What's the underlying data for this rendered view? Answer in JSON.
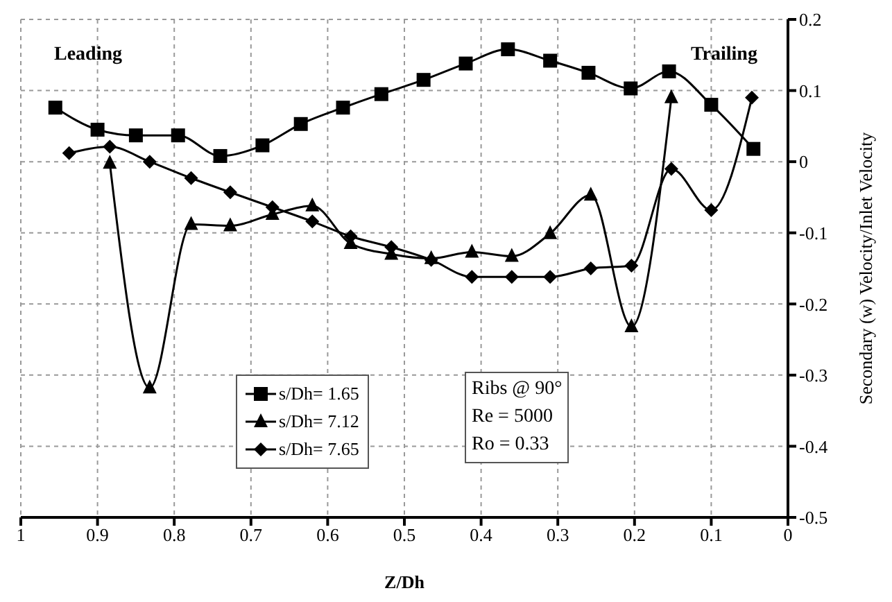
{
  "chart_data": {
    "type": "line",
    "xlabel": "Z/Dh",
    "ylabel": "Secondary (w) Velocity/Inlet Velocity",
    "xlim": [
      1,
      0
    ],
    "xticks": [
      1,
      0.9,
      0.8,
      0.7,
      0.6,
      0.5,
      0.4,
      0.3,
      0.2,
      0.1,
      0
    ],
    "ylim": [
      -0.5,
      0.2
    ],
    "yticks": [
      -0.5,
      -0.4,
      -0.3,
      -0.2,
      -0.1,
      0,
      0.1,
      0.2
    ],
    "grid": true,
    "legend": "bottom left",
    "series": [
      {
        "name": "s/Dh= 1.65",
        "color": "#000000",
        "marker": "square",
        "x": [
          0.955,
          0.9,
          0.85,
          0.795,
          0.74,
          0.685,
          0.635,
          0.58,
          0.53,
          0.475,
          0.42,
          0.365,
          0.31,
          0.26,
          0.205,
          0.155,
          0.1,
          0.045
        ],
        "values": [
          0.076,
          0.045,
          0.037,
          0.037,
          0.008,
          0.023,
          0.053,
          0.076,
          0.095,
          0.115,
          0.138,
          0.158,
          0.142,
          0.125,
          0.103,
          0.127,
          0.08,
          0.018
        ]
      },
      {
        "name": "s/Dh= 7.12",
        "color": "#000000",
        "marker": "triangle",
        "x": [
          0.884,
          0.832,
          0.778,
          0.727,
          0.672,
          0.62,
          0.57,
          0.517,
          0.465,
          0.412,
          0.36,
          0.31,
          0.257,
          0.204,
          0.152
        ],
        "values": [
          -0.002,
          -0.318,
          -0.088,
          -0.09,
          -0.074,
          -0.062,
          -0.115,
          -0.13,
          -0.136,
          -0.127,
          -0.133,
          -0.101,
          -0.047,
          -0.232,
          0.09
        ]
      },
      {
        "name": "s/Dh= 7.65",
        "color": "#000000",
        "marker": "diamond",
        "x": [
          0.937,
          0.884,
          0.832,
          0.778,
          0.727,
          0.672,
          0.62,
          0.57,
          0.517,
          0.465,
          0.412,
          0.36,
          0.31,
          0.257,
          0.204,
          0.152,
          0.1,
          0.047
        ],
        "values": [
          0.012,
          0.021,
          0,
          -0.023,
          -0.043,
          -0.064,
          -0.084,
          -0.105,
          -0.12,
          -0.138,
          -0.162,
          -0.162,
          -0.162,
          -0.15,
          -0.146,
          -0.01,
          -0.068,
          0.09
        ]
      }
    ],
    "annotations": [
      "Leading",
      "Trailing",
      "Ribs @ 90°",
      "Re = 5000",
      "Ro = 0.33"
    ]
  }
}
